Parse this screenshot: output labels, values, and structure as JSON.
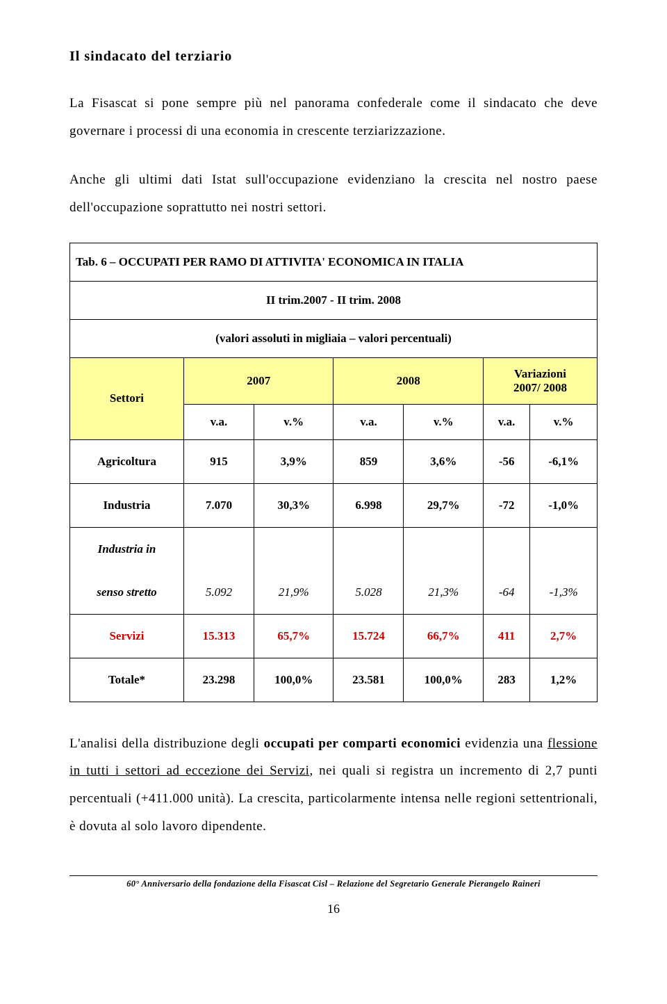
{
  "section_title": "Il sindacato del terziario",
  "para1": "La Fisascat si pone sempre più nel panorama confederale come il sindacato che deve governare i processi di una economia in crescente terziarizzazione.",
  "para2": "Anche gli ultimi dati Istat sull'occupazione evidenziano la crescita nel nostro paese dell'occupazione soprattutto nei nostri settori.",
  "table": {
    "title": "Tab. 6 – OCCUPATI PER RAMO DI ATTIVITA' ECONOMICA IN ITALIA",
    "period": "II trim.2007 - II trim. 2008",
    "subtitle": "(valori assoluti in migliaia – valori percentuali)",
    "col_settori": "Settori",
    "col_2007": "2007",
    "col_2008": "2008",
    "col_var": "Variazioni",
    "col_var2": "2007/ 2008",
    "sub_va": "v.a.",
    "sub_vp": "v.%",
    "rows": [
      {
        "label": "Agricoltura",
        "va07": "915",
        "vp07": "3,9%",
        "va08": "859",
        "vp08": "3,6%",
        "dva": "-56",
        "dvp": "-6,1%",
        "italic": false,
        "red": false
      },
      {
        "label": "Industria",
        "va07": "7.070",
        "vp07": "30,3%",
        "va08": "6.998",
        "vp08": "29,7%",
        "dva": "-72",
        "dvp": "-1,0%",
        "italic": false,
        "red": false
      },
      {
        "label_top": "Industria in",
        "label_bottom": "senso stretto",
        "va07": "5.092",
        "vp07": "21,9%",
        "va08": "5.028",
        "vp08": "21,3%",
        "dva": "-64",
        "dvp": "-1,3%",
        "italic": true,
        "red": false,
        "split": true
      },
      {
        "label": "Servizi",
        "va07": "15.313",
        "vp07": "65,7%",
        "va08": "15.724",
        "vp08": "66,7%",
        "dva": "411",
        "dvp": "2,7%",
        "italic": false,
        "red": true
      },
      {
        "label": "Totale*",
        "va07": "23.298",
        "vp07": "100,0%",
        "va08": "23.581",
        "vp08": "100,0%",
        "dva": "283",
        "dvp": "1,2%",
        "italic": false,
        "red": false
      }
    ]
  },
  "closing_parts": {
    "t1": "L'analisi della distribuzione degli ",
    "t2": "occupati per comparti economici",
    "t3": " evidenzia una ",
    "t4": "flessione in tutti i settori ad eccezione dei Servizi",
    "t5": ", nei quali si registra un incremento di 2,7 punti percentuali (+411.000 unità). La crescita, particolarmente intensa nelle regioni settentrionali, è dovuta al solo lavoro dipendente."
  },
  "footer": "60° Anniversario della fondazione della Fisascat Cisl – Relazione del Segretario Generale Pierangelo Raineri",
  "page_number": "16"
}
